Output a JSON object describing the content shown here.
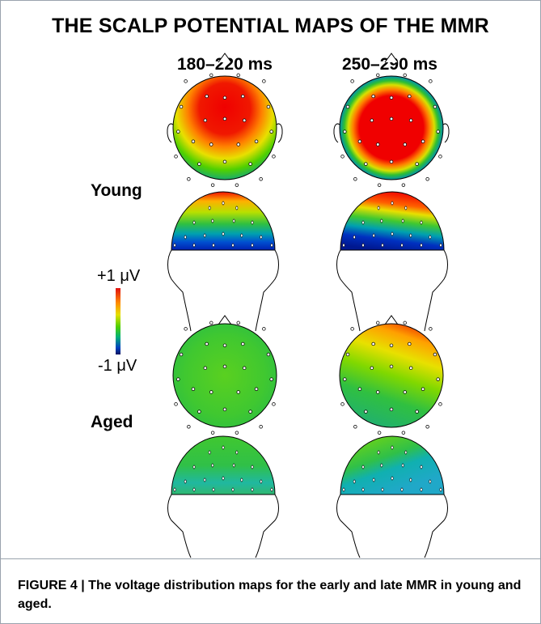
{
  "figure": {
    "title": "THE SCALP POTENTIAL MAPS OF THE MMR",
    "columns": [
      "180–220 ms",
      "250–290 ms"
    ],
    "rows": [
      "Young",
      "Aged"
    ],
    "colorbar": {
      "max_label": "+1 μV",
      "min_label": "-1 μV",
      "colors": [
        "#e01010",
        "#ff8a00",
        "#e6e000",
        "#4fd000",
        "#00b07a",
        "#0040c0",
        "#0a1460"
      ]
    }
  },
  "caption": {
    "label": "FIGURE 4 |",
    "text": "The voltage distribution maps for the early and late MMR in young and aged."
  }
}
